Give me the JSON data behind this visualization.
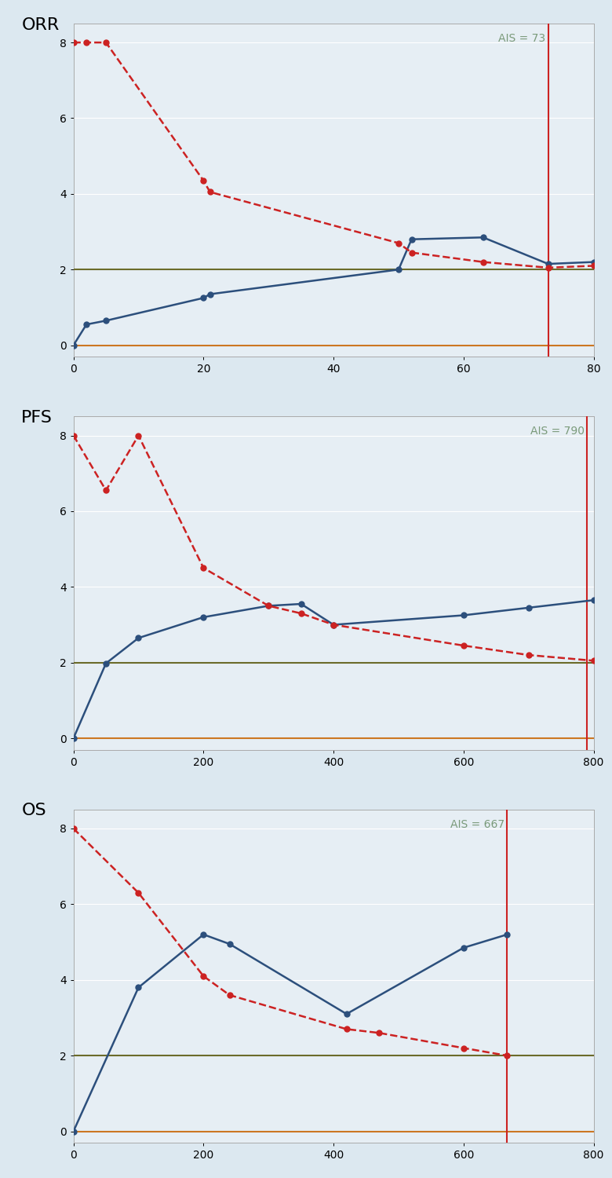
{
  "panels": [
    {
      "label": "ORR",
      "xlim": [
        0,
        80
      ],
      "ylim": [
        -0.3,
        8.5
      ],
      "xticks": [
        0,
        20,
        40,
        60,
        80
      ],
      "yticks": [
        0,
        2,
        4,
        6,
        8
      ],
      "ais": 73,
      "ais_label": "AIS = 73",
      "blue_x": [
        0,
        2,
        5,
        20,
        21,
        50,
        52,
        63,
        73,
        80
      ],
      "blue_y": [
        0,
        0.55,
        0.65,
        1.25,
        1.35,
        2.0,
        2.8,
        2.85,
        2.15,
        2.2
      ],
      "red_x": [
        0,
        2,
        5,
        20,
        21,
        50,
        52,
        63,
        73,
        80
      ],
      "red_y": [
        8,
        8,
        8,
        4.35,
        4.05,
        2.7,
        2.45,
        2.2,
        2.05,
        2.1
      ],
      "hline_green": 2.0,
      "hline_orange": 0.0
    },
    {
      "label": "PFS",
      "xlim": [
        0,
        800
      ],
      "ylim": [
        -0.3,
        8.5
      ],
      "xticks": [
        0,
        200,
        400,
        600,
        800
      ],
      "yticks": [
        0,
        2,
        4,
        6,
        8
      ],
      "ais": 790,
      "ais_label": "AIS = 790",
      "blue_x": [
        0,
        50,
        100,
        200,
        300,
        350,
        400,
        600,
        700,
        800
      ],
      "blue_y": [
        0,
        1.98,
        2.65,
        3.2,
        3.5,
        3.55,
        3.0,
        3.25,
        3.45,
        3.65
      ],
      "red_x": [
        0,
        50,
        100,
        200,
        300,
        350,
        400,
        600,
        700,
        800
      ],
      "red_y": [
        8,
        6.55,
        8,
        4.5,
        3.5,
        3.3,
        3.0,
        2.45,
        2.2,
        2.05
      ],
      "hline_green": 2.0,
      "hline_orange": 0.0
    },
    {
      "label": "OS",
      "xlim": [
        0,
        800
      ],
      "ylim": [
        -0.3,
        8.5
      ],
      "xticks": [
        0,
        200,
        400,
        600,
        800
      ],
      "yticks": [
        0,
        2,
        4,
        6,
        8
      ],
      "ais": 667,
      "ais_label": "AIS = 667",
      "blue_x": [
        0,
        100,
        200,
        240,
        420,
        600,
        667
      ],
      "blue_y": [
        0,
        3.8,
        5.2,
        4.95,
        3.1,
        4.85,
        5.2
      ],
      "red_x": [
        0,
        100,
        200,
        240,
        420,
        470,
        600,
        667
      ],
      "red_y": [
        8,
        6.3,
        4.1,
        3.6,
        2.7,
        2.6,
        2.2,
        2.0
      ],
      "hline_green": 2.0,
      "hline_orange": 0.0
    }
  ],
  "bg_color": "#dce8f0",
  "plot_bg_color": "#e6eef4",
  "blue_color": "#2c4f7c",
  "red_color": "#cc2222",
  "green_color": "#6b6b2a",
  "orange_color": "#cc7722",
  "vline_color": "#cc2222",
  "ais_text_color": "#7a9a7a",
  "label_fontsize": 16,
  "tick_fontsize": 10,
  "ais_fontsize": 10,
  "linewidth_blue": 1.8,
  "linewidth_red": 1.8,
  "linewidth_hline": 1.5,
  "markersize": 5
}
